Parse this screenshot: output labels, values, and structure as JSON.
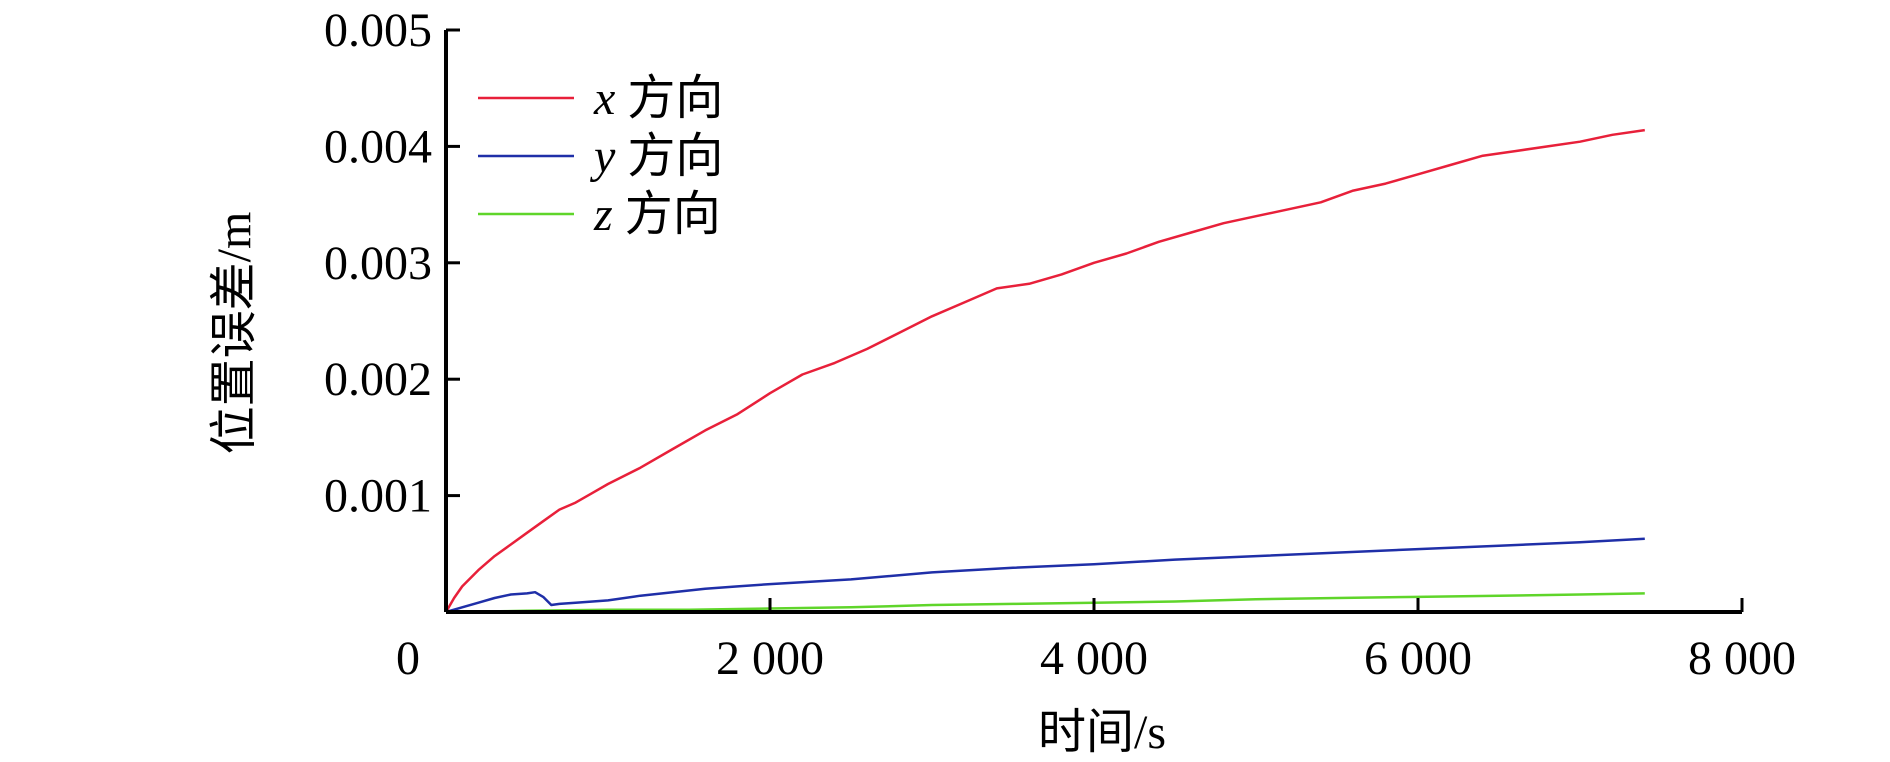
{
  "chart_data": {
    "type": "line",
    "title": "",
    "xlabel": "时间/s",
    "ylabel": "位置误差/m",
    "xlim": [
      0,
      8000
    ],
    "ylim": [
      0,
      0.005
    ],
    "x_ticks": [
      0,
      2000,
      4000,
      6000,
      8000
    ],
    "x_tick_labels": [
      "0",
      "2 000",
      "4 000",
      "6 000",
      "8 000"
    ],
    "y_ticks": [
      0.001,
      0.002,
      0.003,
      0.004,
      0.005
    ],
    "y_tick_labels": [
      "0.001",
      "0.002",
      "0.003",
      "0.004",
      "0.005"
    ],
    "grid": false,
    "legend": "top-left",
    "series": [
      {
        "name": "x 方向",
        "var": "x",
        "suffix": "方向",
        "color": "#e8203a",
        "x": [
          0,
          50,
          100,
          200,
          300,
          400,
          500,
          600,
          700,
          800,
          900,
          1000,
          1200,
          1400,
          1600,
          1800,
          2000,
          2200,
          2400,
          2600,
          2800,
          3000,
          3200,
          3400,
          3600,
          3800,
          4000,
          4200,
          4400,
          4600,
          4800,
          5000,
          5200,
          5400,
          5600,
          5800,
          6000,
          6200,
          6400,
          6600,
          6800,
          7000,
          7200,
          7400
        ],
        "y": [
          0.0,
          0.00012,
          0.00022,
          0.00036,
          0.00048,
          0.00058,
          0.00068,
          0.00078,
          0.00088,
          0.00094,
          0.00102,
          0.0011,
          0.00124,
          0.0014,
          0.00156,
          0.0017,
          0.00188,
          0.00204,
          0.00214,
          0.00226,
          0.0024,
          0.00254,
          0.00266,
          0.00278,
          0.00282,
          0.0029,
          0.003,
          0.00308,
          0.00318,
          0.00326,
          0.00334,
          0.0034,
          0.00346,
          0.00352,
          0.00362,
          0.00368,
          0.00376,
          0.00384,
          0.00392,
          0.00396,
          0.004,
          0.00404,
          0.0041,
          0.00414
        ]
      },
      {
        "name": "y 方向",
        "var": "y",
        "suffix": "方向",
        "color": "#1f2fa8",
        "x": [
          0,
          100,
          200,
          300,
          400,
          500,
          550,
          600,
          650,
          700,
          800,
          1000,
          1200,
          1400,
          1600,
          1800,
          2000,
          2500,
          3000,
          3500,
          4000,
          4500,
          5000,
          5500,
          6000,
          6500,
          7000,
          7400
        ],
        "y": [
          0.0,
          4e-05,
          8e-05,
          0.00012,
          0.00015,
          0.00016,
          0.00017,
          0.00013,
          6e-05,
          7e-05,
          8e-05,
          0.0001,
          0.00014,
          0.00017,
          0.0002,
          0.00022,
          0.00024,
          0.00028,
          0.00034,
          0.00038,
          0.00041,
          0.00045,
          0.00048,
          0.00051,
          0.00054,
          0.00057,
          0.0006,
          0.00063
        ]
      },
      {
        "name": "z 方向",
        "var": "z",
        "suffix": "方向",
        "color": "#5fd52a",
        "x": [
          0,
          500,
          1000,
          1500,
          2000,
          2500,
          3000,
          3500,
          4000,
          4500,
          5000,
          5500,
          6000,
          6500,
          7000,
          7400
        ],
        "y": [
          0.0,
          1e-05,
          2e-05,
          2e-05,
          3e-05,
          4e-05,
          6e-05,
          7e-05,
          8e-05,
          9e-05,
          0.00011,
          0.00012,
          0.00013,
          0.00014,
          0.00015,
          0.00016
        ]
      }
    ]
  }
}
